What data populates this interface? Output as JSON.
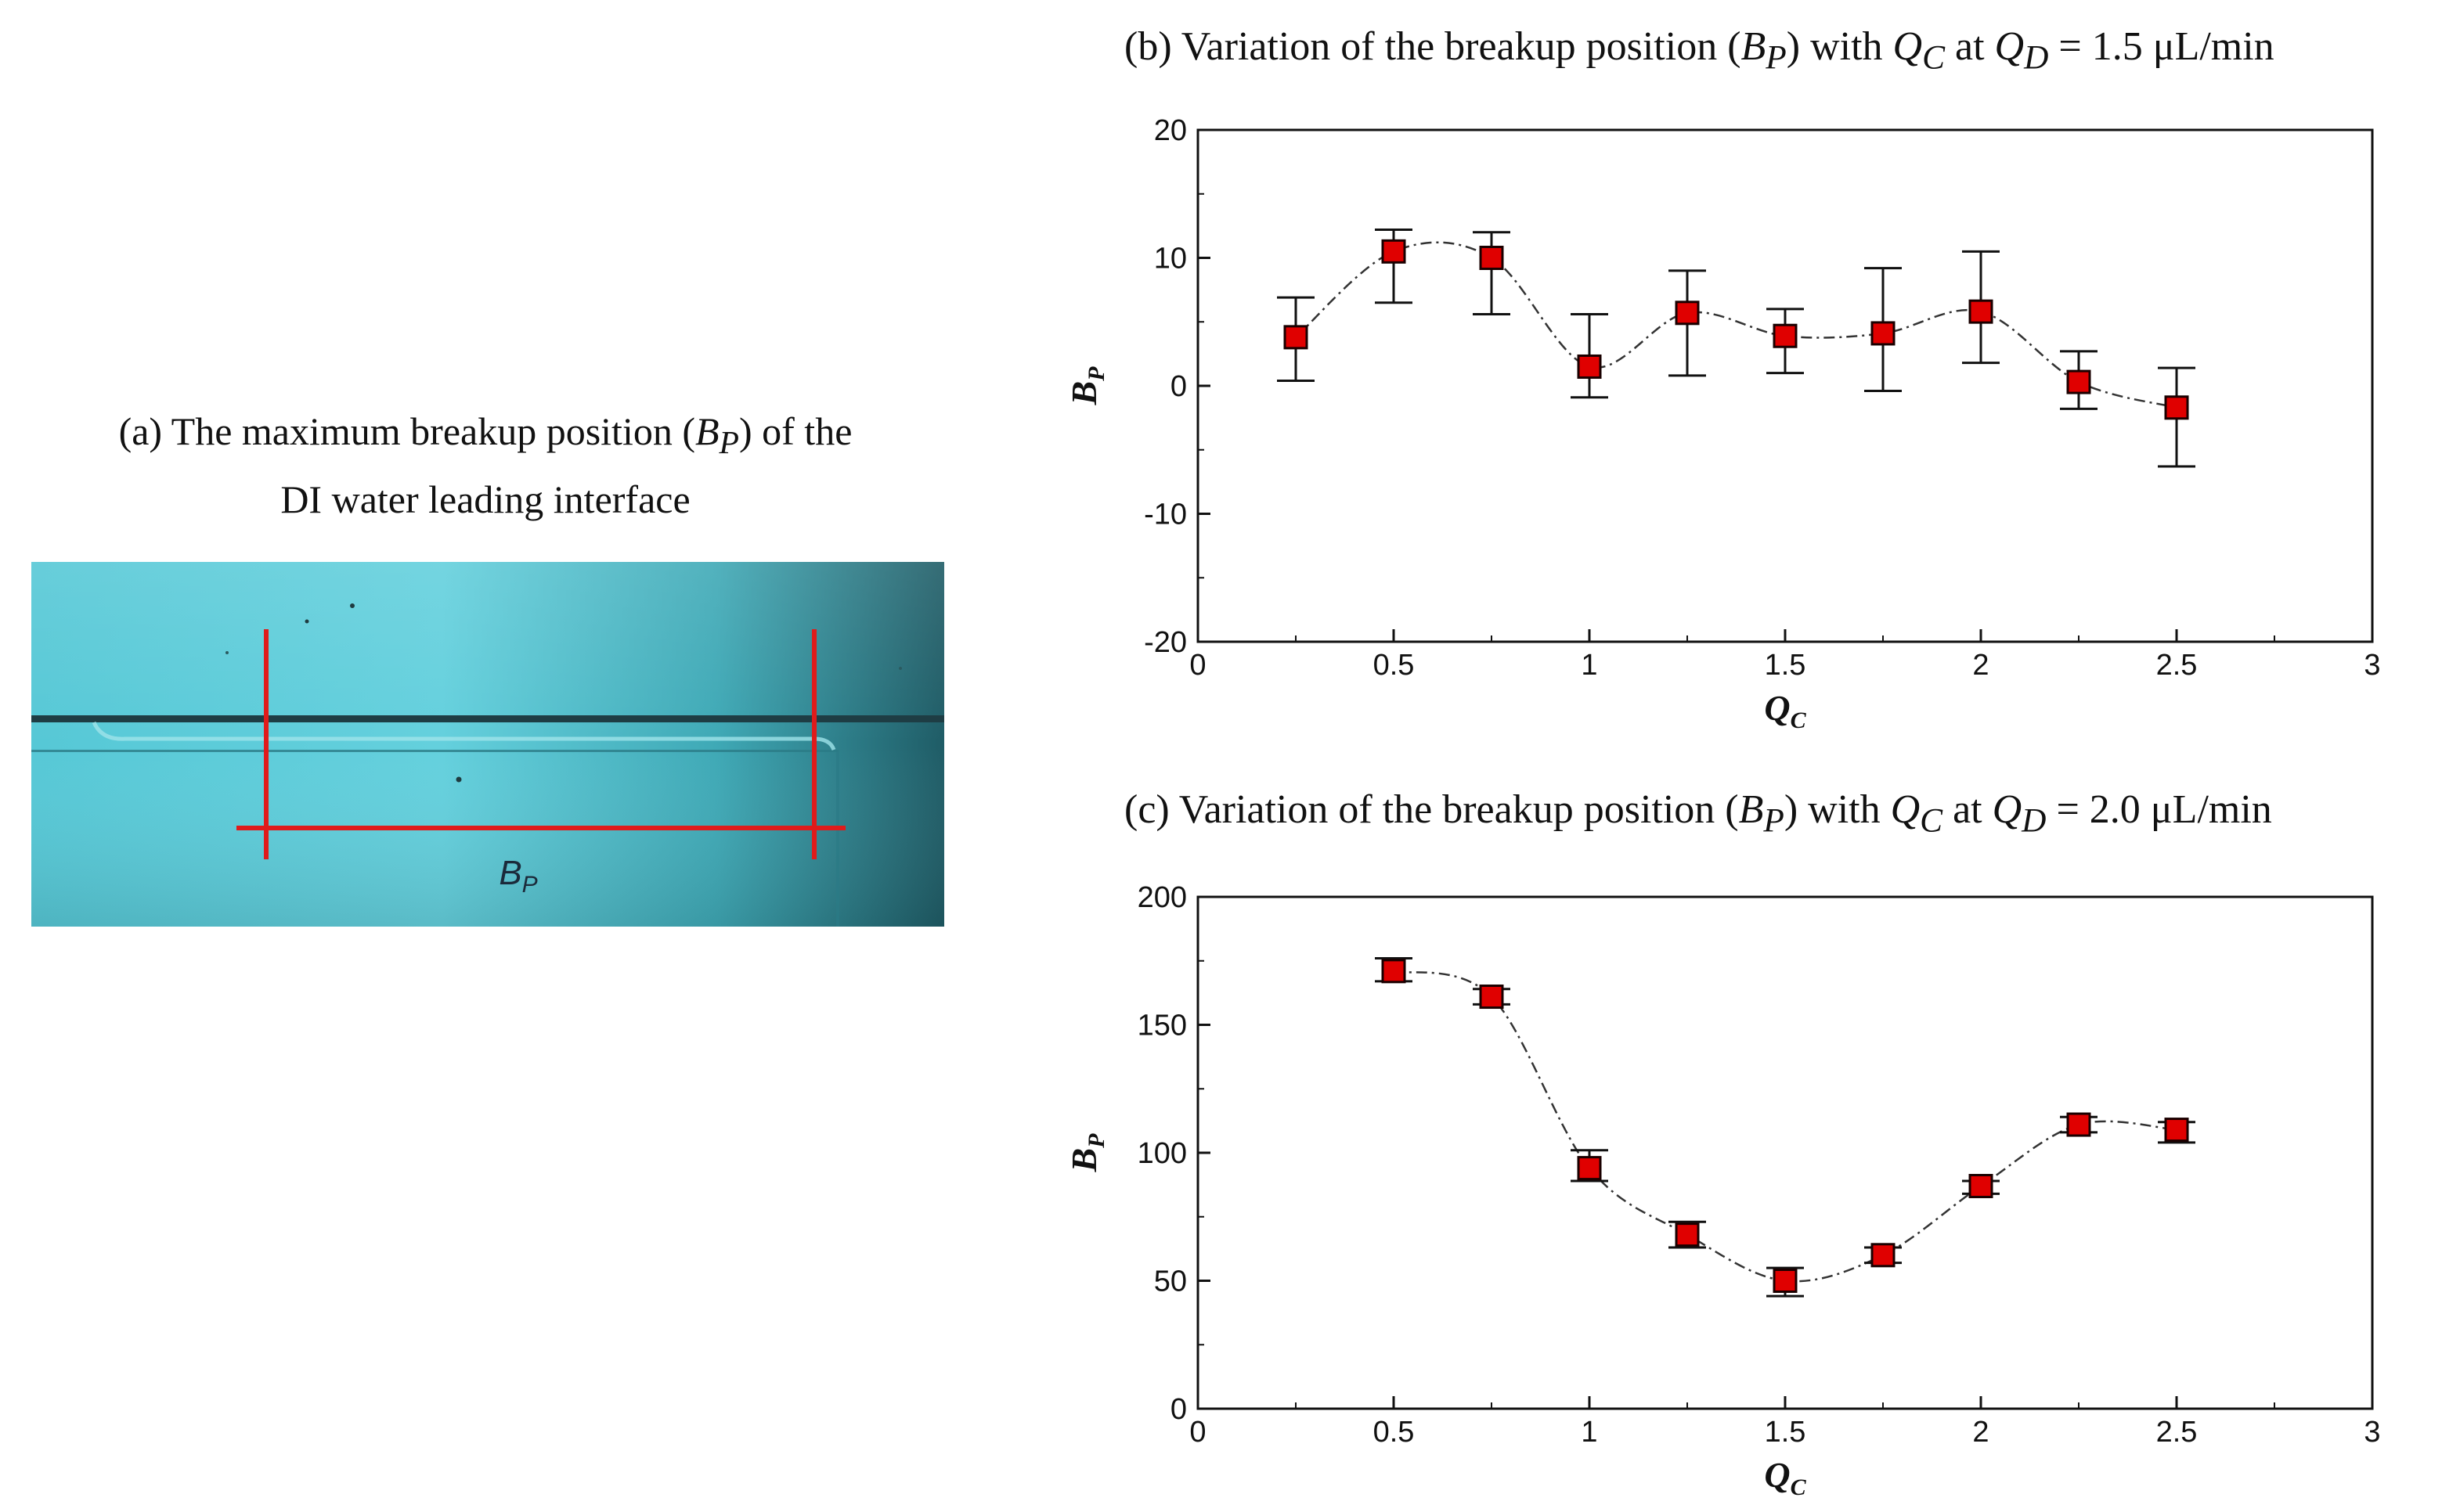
{
  "figure": {
    "panel_a": {
      "caption_prefix": "(a) The maximum breakup position (",
      "caption_symbol": "B",
      "caption_symbol_sub": "P",
      "caption_suffix": ") of the",
      "caption_line2": "DI water leading interface",
      "image_label": "B",
      "image_label_sub": "P"
    },
    "panel_b": {
      "caption_prefix": "(b) Variation of the breakup position (",
      "caption_bp": "B",
      "caption_bp_sub": "P",
      "caption_mid": ") with ",
      "caption_qc": "Q",
      "caption_qc_sub": "C",
      "caption_at": " at ",
      "caption_qd": "Q",
      "caption_qd_sub": "D",
      "caption_value": " = 1.5 μL/min"
    },
    "panel_c": {
      "caption_prefix": "(c) Variation of the breakup position (",
      "caption_bp": "B",
      "caption_bp_sub": "P",
      "caption_mid": ") with ",
      "caption_qc": "Q",
      "caption_qc_sub": "C",
      "caption_at": " at ",
      "caption_qd": "Q",
      "caption_qd_sub": "D",
      "caption_value": " = 2.0 μL/min"
    }
  },
  "colors": {
    "marker_fill": "#e00000",
    "marker_stroke": "#1a0000",
    "photo_background": "#4cc7d0",
    "photo_dark_edge": "#1d4d55",
    "measure_line": "#e01b1b"
  },
  "chart_data": [
    {
      "type": "scatter",
      "id": "b",
      "title": "Variation of the breakup position (B_P) with Q_C at Q_D = 1.5 μL/min",
      "xlabel": "Q",
      "xlabel_sub": "C",
      "ylabel": "B",
      "ylabel_sub": "P",
      "xlim": [
        0,
        3
      ],
      "ylim": [
        -20,
        20
      ],
      "xticks": [
        0,
        0.5,
        1,
        1.5,
        2,
        2.5,
        3
      ],
      "xtick_labels": [
        "0",
        "0.5",
        "1",
        "1.5",
        "2",
        "2.5",
        "3"
      ],
      "yticks": [
        -20,
        -10,
        0,
        10,
        20
      ],
      "ytick_labels": [
        "-20",
        "-10",
        "0",
        "10",
        "20"
      ],
      "x": [
        0.25,
        0.5,
        0.75,
        1.0,
        1.25,
        1.5,
        1.75,
        2.0,
        2.25,
        2.5
      ],
      "y": [
        3.8,
        10.5,
        10.0,
        1.5,
        5.7,
        3.9,
        4.1,
        5.8,
        0.3,
        -1.7
      ],
      "err_low": [
        0.4,
        6.5,
        5.6,
        -0.9,
        0.8,
        1.0,
        -0.4,
        1.8,
        -1.8,
        -6.3
      ],
      "err_high": [
        6.9,
        12.2,
        12.0,
        5.6,
        9.0,
        6.0,
        9.2,
        10.5,
        2.7,
        1.4
      ],
      "fit_line": "smooth dash-dot curve through points",
      "grid": false
    },
    {
      "type": "scatter",
      "id": "c",
      "title": "Variation of the breakup position (B_P) with Q_C at Q_D = 2.0 μL/min",
      "xlabel": "Q",
      "xlabel_sub": "C",
      "ylabel": "B",
      "ylabel_sub": "P",
      "xlim": [
        0,
        3
      ],
      "ylim": [
        0,
        200
      ],
      "xticks": [
        0,
        0.5,
        1,
        1.5,
        2,
        2.5,
        3
      ],
      "xtick_labels": [
        "0",
        "0.5",
        "1",
        "1.5",
        "2",
        "2.5",
        "3"
      ],
      "yticks": [
        0,
        50,
        100,
        150,
        200
      ],
      "ytick_labels": [
        "0",
        "50",
        "100",
        "150",
        "200"
      ],
      "x": [
        0.5,
        0.75,
        1.0,
        1.25,
        1.5,
        1.75,
        2.0,
        2.25,
        2.5
      ],
      "y": [
        171,
        161,
        94,
        68,
        50,
        60,
        87,
        111,
        109
      ],
      "err_low": [
        167,
        158,
        89,
        63,
        44,
        57,
        84,
        108,
        104
      ],
      "err_high": [
        176,
        164,
        101,
        73,
        55,
        63,
        89,
        114,
        112
      ],
      "fit_line": "smooth dash-dot curve through points",
      "grid": false
    }
  ]
}
